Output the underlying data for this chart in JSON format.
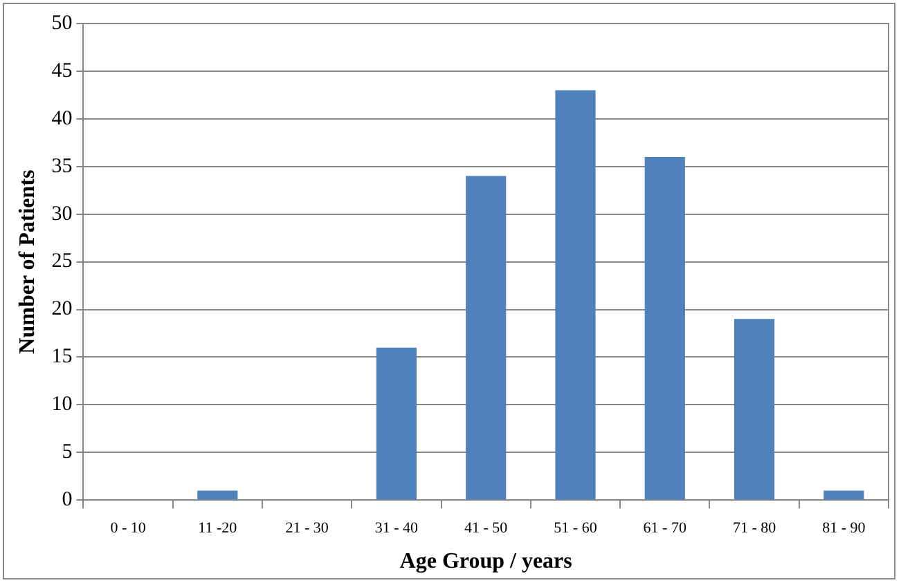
{
  "chart_data": {
    "type": "bar",
    "xlabel": "Age Group / years",
    "ylabel": "Number of Patients",
    "categories": [
      "0 - 10",
      "11 -20",
      "21 - 30",
      "31 - 40",
      "41 - 50",
      "51 - 60",
      "61 - 70",
      "71 - 80",
      "81 - 90"
    ],
    "values": [
      0,
      1,
      0,
      16,
      34,
      43,
      36,
      19,
      1
    ],
    "color": "#4f81bd",
    "ylim": [
      0,
      50
    ],
    "yticks": [
      0,
      5,
      10,
      15,
      20,
      25,
      30,
      35,
      40,
      45,
      50
    ],
    "grid": "y"
  }
}
